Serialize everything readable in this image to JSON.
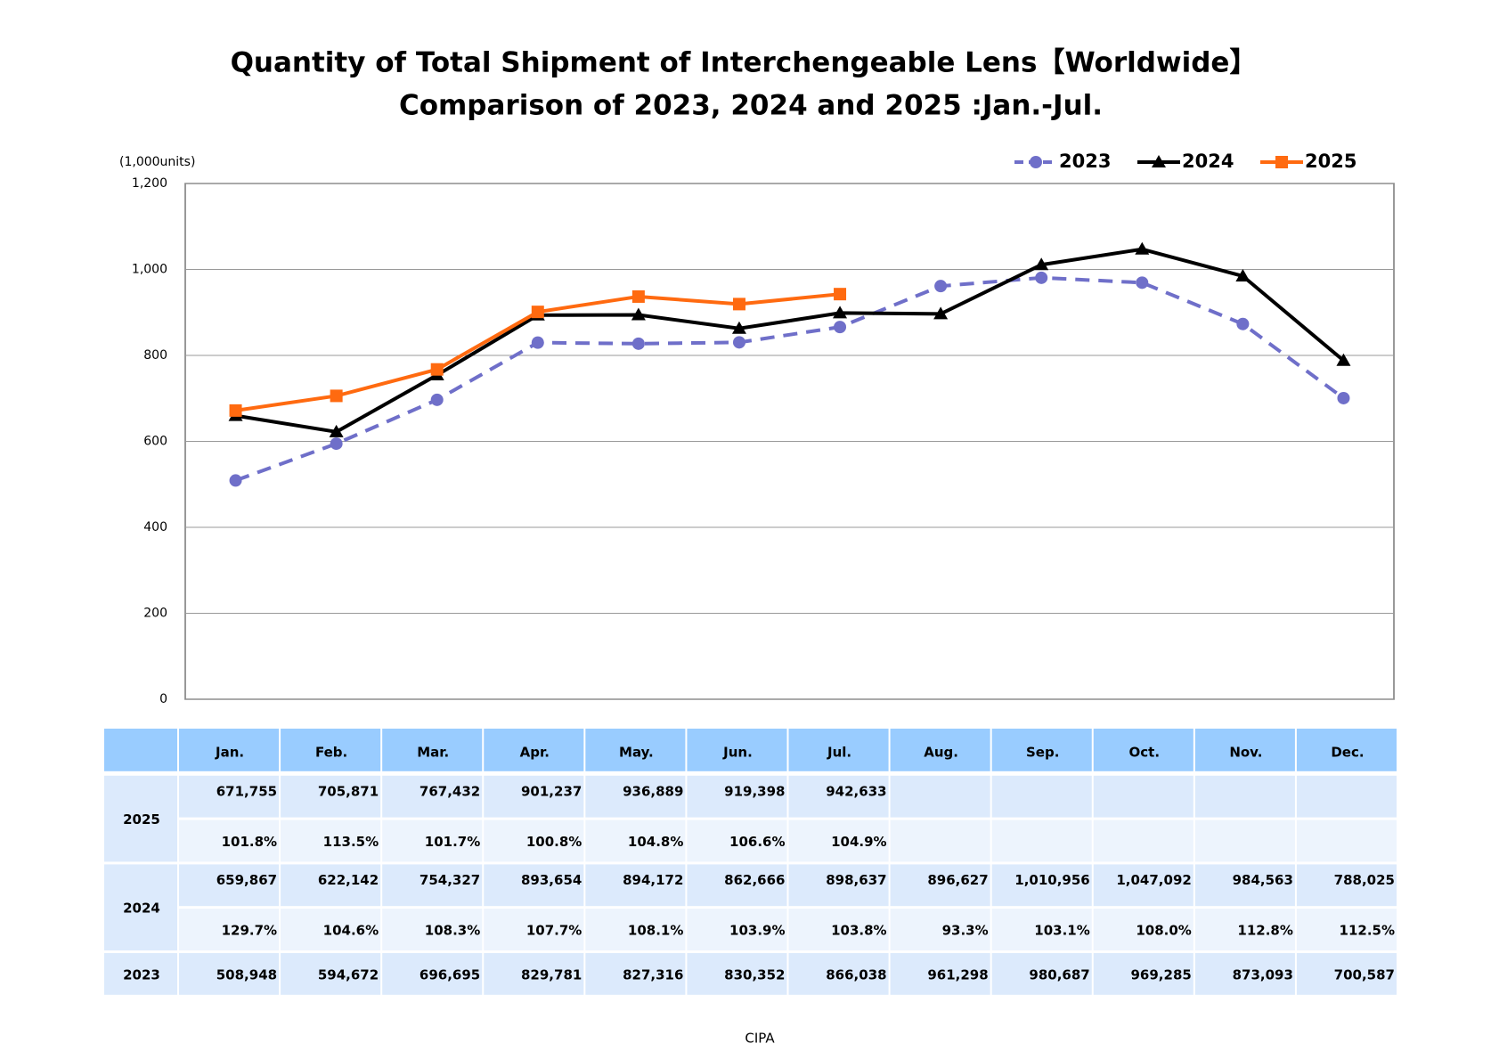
{
  "chart_data": {
    "type": "line",
    "title": "Quantity of Total Shipment of Interchengeable Lens【Worldwide】",
    "subtitle": "Comparison of 2023, 2024 and 2025 :Jan.-Jul.",
    "y_label": "(1,000units)",
    "source": "CIPA",
    "categories": [
      "Jan.",
      "Feb.",
      "Mar.",
      "Apr.",
      "May.",
      "Jun.",
      "Jul.",
      "Aug.",
      "Sep.",
      "Oct.",
      "Nov.",
      "Dec."
    ],
    "ylim": [
      0,
      1200
    ],
    "yticks": [
      0,
      200,
      400,
      600,
      800,
      {
        "value": 1000,
        "label": "1,000"
      },
      {
        "value": 1200,
        "label": "1,200"
      }
    ],
    "grid": true,
    "legend": "top-right",
    "series": [
      {
        "name": "2023",
        "color": "#6f6fc9",
        "marker": "circle",
        "dashed": true,
        "values": [
          508.948,
          594.672,
          696.695,
          829.781,
          827.316,
          830.352,
          866.038,
          961.298,
          980.687,
          969.285,
          873.093,
          700.587
        ],
        "value_labels": [
          "508,948",
          "594,672",
          "696,695",
          "829,781",
          "827,316",
          "830,352",
          "866,038",
          "961,298",
          "980,687",
          "969,285",
          "873,093",
          "700,587"
        ]
      },
      {
        "name": "2024",
        "color": "#000000",
        "marker": "triangle",
        "dashed": false,
        "values": [
          659.867,
          622.142,
          754.327,
          893.654,
          894.172,
          862.666,
          898.637,
          896.627,
          1010.956,
          1047.092,
          984.563,
          788.025
        ],
        "value_labels": [
          "659,867",
          "622,142",
          "754,327",
          "893,654",
          "894,172",
          "862,666",
          "898,637",
          "896,627",
          "1,010,956",
          "1,047,092",
          "984,563",
          "788,025"
        ],
        "ratio_labels": [
          "129.7%",
          "104.6%",
          "108.3%",
          "107.7%",
          "108.1%",
          "103.9%",
          "103.8%",
          "93.3%",
          "103.1%",
          "108.0%",
          "112.8%",
          "112.5%"
        ]
      },
      {
        "name": "2025",
        "color": "#ff6a10",
        "marker": "square",
        "dashed": false,
        "values": [
          671.755,
          705.871,
          767.432,
          901.237,
          936.889,
          919.398,
          942.633,
          null,
          null,
          null,
          null,
          null
        ],
        "value_labels": [
          "671,755",
          "705,871",
          "767,432",
          "901,237",
          "936,889",
          "919,398",
          "942,633",
          null,
          null,
          null,
          null,
          null
        ],
        "ratio_labels": [
          "101.8%",
          "113.5%",
          "101.7%",
          "100.8%",
          "104.8%",
          "106.6%",
          "104.9%",
          null,
          null,
          null,
          null,
          null
        ]
      }
    ]
  }
}
